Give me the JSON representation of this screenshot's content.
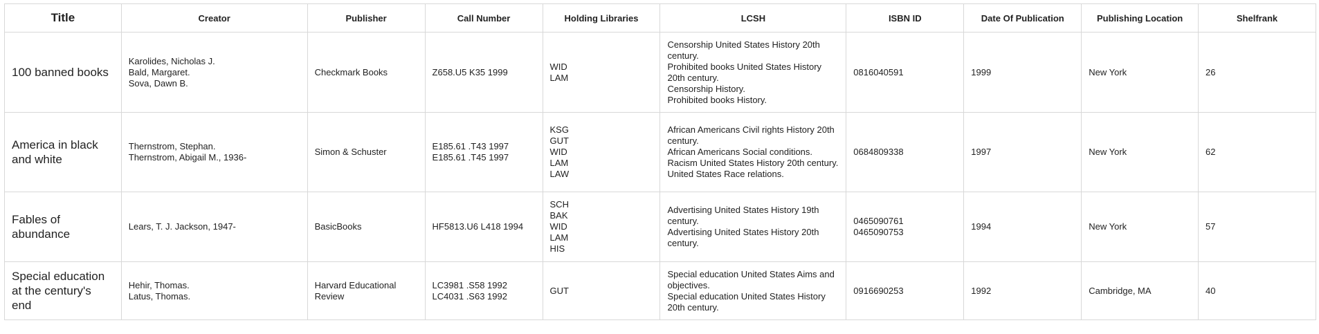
{
  "table": {
    "headers": {
      "title": "Title",
      "creator": "Creator",
      "publisher": "Publisher",
      "call_number": "Call Number",
      "holding_libraries": "Holding Libraries",
      "lcsh": "LCSH",
      "isbn": "ISBN ID",
      "date": "Date Of Publication",
      "location": "Publishing Location",
      "shelfrank": "Shelfrank"
    },
    "rows": [
      {
        "title": "100 banned books",
        "creators": [
          "Karolides, Nicholas J.",
          "Bald, Margaret.",
          "Sova, Dawn B."
        ],
        "publisher": "Checkmark Books",
        "call_numbers": [
          "Z658.U5 K35 1999"
        ],
        "libraries": [
          "WID",
          "LAM"
        ],
        "lcsh": [
          "Censorship United States History 20th century.",
          "Prohibited books United States History 20th century.",
          "Censorship History.",
          "Prohibited books History."
        ],
        "isbn": [
          "0816040591"
        ],
        "date": "1999",
        "location": "New York",
        "shelfrank": "26"
      },
      {
        "title": "America in black and white",
        "creators": [
          "Thernstrom, Stephan.",
          "Thernstrom, Abigail M., 1936-"
        ],
        "publisher": "Simon & Schuster",
        "call_numbers": [
          "E185.61 .T43 1997",
          "E185.61 .T45 1997"
        ],
        "libraries": [
          "KSG",
          "GUT",
          "WID",
          "LAM",
          "LAW"
        ],
        "lcsh": [
          "African Americans Civil rights History 20th century.",
          "African Americans Social conditions.",
          "Racism United States History 20th century.",
          "United States Race relations."
        ],
        "isbn": [
          "0684809338"
        ],
        "date": "1997",
        "location": "New York",
        "shelfrank": "62"
      },
      {
        "title": "Fables of abundance",
        "creators": [
          "Lears, T. J. Jackson, 1947-"
        ],
        "publisher": "BasicBooks",
        "call_numbers": [
          "HF5813.U6 L418 1994"
        ],
        "libraries": [
          "SCH",
          "BAK",
          "WID",
          "LAM",
          "HIS"
        ],
        "lcsh": [
          "Advertising United States History 19th century.",
          "Advertising United States History 20th century."
        ],
        "isbn": [
          "0465090761",
          "0465090753"
        ],
        "date": "1994",
        "location": "New York",
        "shelfrank": "57"
      },
      {
        "title": "Special education at the century's end",
        "creators": [
          "Hehir, Thomas.",
          "Latus, Thomas."
        ],
        "publisher": "Harvard Educational Review",
        "call_numbers": [
          "LC3981 .S58 1992",
          "LC4031 .S63 1992"
        ],
        "libraries": [
          "GUT"
        ],
        "lcsh": [
          "Special education United States Aims and objectives.",
          "Special education United States History 20th century."
        ],
        "isbn": [
          "0916690253"
        ],
        "date": "1992",
        "location": "Cambridge, MA",
        "shelfrank": "40"
      }
    ]
  }
}
